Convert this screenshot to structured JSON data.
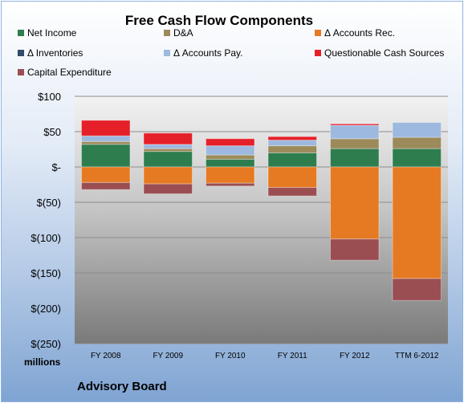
{
  "chart_data": {
    "type": "bar",
    "stacked": true,
    "title": "Free Cash Flow Components",
    "categories": [
      "FY 2008",
      "FY 2009",
      "FY 2010",
      "FY 2011",
      "FY 2012",
      "TTM 6-2012"
    ],
    "series": [
      {
        "name": "Net Income",
        "color": "#2e7d4f",
        "values": [
          32,
          22,
          11,
          20,
          26,
          26
        ]
      },
      {
        "name": "D&A",
        "color": "#9c8a5a",
        "values": [
          4,
          4,
          6,
          10,
          14,
          16
        ]
      },
      {
        "name": "Δ Accounts Rec.",
        "color": "#e67a22",
        "values": [
          -22,
          -24,
          -23,
          -29,
          -102,
          -158
        ]
      },
      {
        "name": "Δ Inventories",
        "color": "#2f4a6b",
        "values": [
          0,
          0,
          0,
          0,
          0,
          0
        ]
      },
      {
        "name": "Δ Accounts Pay.",
        "color": "#9db9df",
        "values": [
          8,
          6,
          13,
          8,
          19,
          21
        ]
      },
      {
        "name": "Questionable Cash Sources",
        "color": "#e52028",
        "values": [
          22,
          16,
          10,
          5,
          2,
          0
        ]
      },
      {
        "name": "Capital Expenditure",
        "color": "#9b4e52",
        "values": [
          -10,
          -14,
          -4,
          -12,
          -30,
          -31
        ]
      }
    ],
    "ylim": [
      -250,
      100
    ],
    "yticks": [
      100,
      50,
      0,
      -50,
      -100,
      -150,
      -200,
      -250
    ],
    "ytick_labels": [
      "$100",
      "$50",
      "$-",
      "$(50)",
      "$(100)",
      "$(150)",
      "$(200)",
      "$(250)"
    ],
    "ylabel": "millions",
    "grid": true,
    "legend": "top"
  },
  "footer": {
    "text": "Advisory Board"
  }
}
